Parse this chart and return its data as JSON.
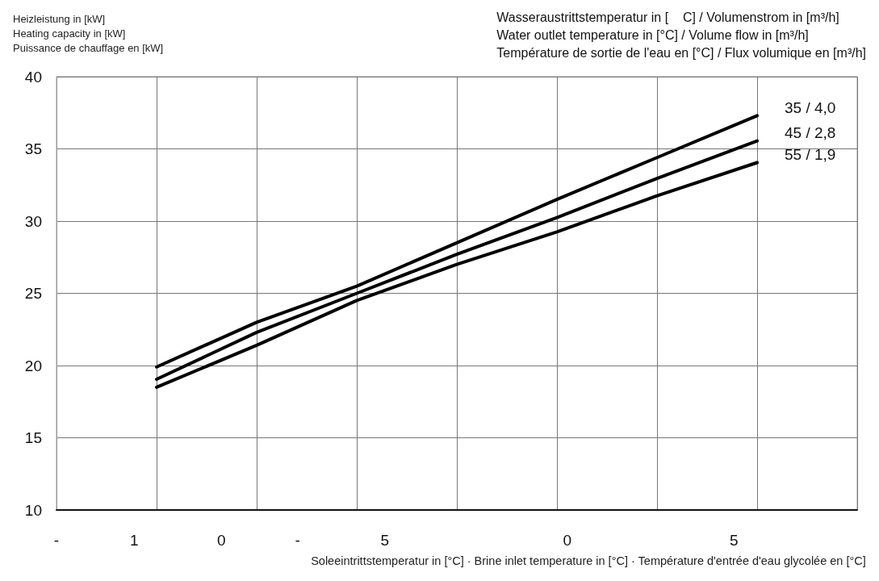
{
  "chart_data": {
    "type": "line",
    "ylabel": "Heizleistung in [kW]\nHeating capacity in [kW]\nPuissance de chauffage en [kW]",
    "legend_title": "Wasseraustrittstemperatur in [    C] / Volumenstrom in [m³/h]\nWater outlet temperature in [°C] / Volume flow in [m³/h]\nTempérature de sortie de l'eau en [°C] / Flux volumique en [m³/h]",
    "xlabel": "Soleeintrittstemperatur in [°C] · Brine inlet temperature in [°C] · Température d'entrée d'eau glycolée en [°C]",
    "categories": [
      null,
      null,
      null,
      null,
      null,
      null,
      null,
      null,
      null
    ],
    "annotations": [
      "-",
      "1",
      "0",
      "-",
      "5",
      "0",
      "5"
    ],
    "series": [
      {
        "name": "35 / 4,0",
        "color": "#000000",
        "values": [
          null,
          19.9,
          23.0,
          25.5,
          28.5,
          31.5,
          34.4,
          37.3,
          null
        ]
      },
      {
        "name": "45 / 2,8",
        "color": "#000000",
        "values": [
          null,
          19.05,
          22.3,
          25.0,
          27.7,
          30.25,
          32.95,
          35.55,
          null
        ]
      },
      {
        "name": "55 / 1,9",
        "color": "#000000",
        "values": [
          null,
          18.5,
          21.4,
          24.5,
          27.0,
          29.25,
          31.75,
          34.05,
          null
        ]
      }
    ],
    "ylim": [
      10,
      40
    ],
    "yticks": [
      10,
      15,
      20,
      25,
      30,
      35,
      40
    ],
    "grid": true,
    "legend": false,
    "marker": "none",
    "line_style": "solid"
  }
}
